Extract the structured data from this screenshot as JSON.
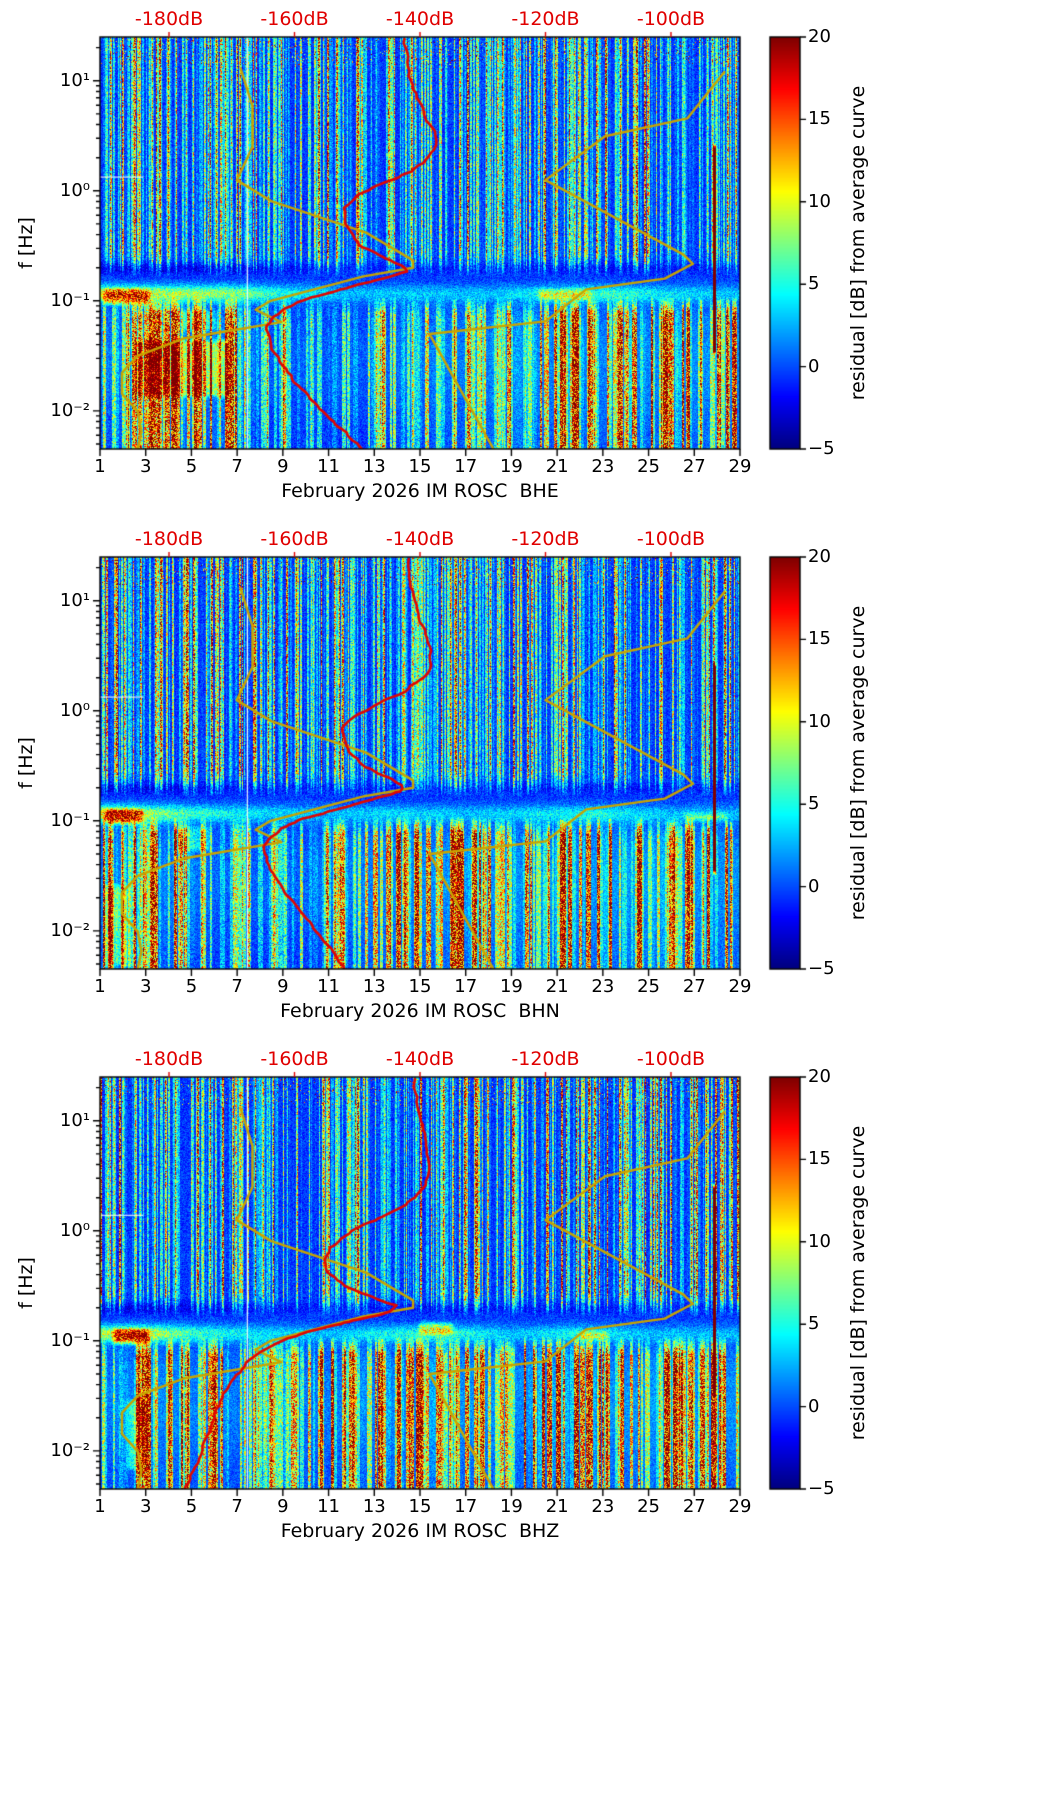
{
  "style": {
    "background": "#ffffff",
    "red_curve": "#e10600",
    "yellow_curve": "#c8a400",
    "top_axis_color": "#e00000",
    "text_color": "#000000",
    "colormap": "jet"
  },
  "axes_common": {
    "x_ticks": [
      1,
      3,
      5,
      7,
      9,
      11,
      13,
      15,
      17,
      19,
      21,
      23,
      25,
      27,
      29
    ],
    "x_tick_labels": [
      "1",
      "3",
      "5",
      "7",
      "9",
      "11",
      "13",
      "15",
      "17",
      "19",
      "21",
      "23",
      "25",
      "27",
      "29"
    ],
    "x_range_days": [
      1,
      29
    ],
    "y_label": "f [Hz]",
    "y_ticks_hz": [
      0.01,
      0.1,
      1,
      10
    ],
    "y_tick_labels": [
      "10⁻²",
      "10⁻¹",
      "10⁰",
      "10¹"
    ],
    "y_range_hz": [
      0.0045,
      25
    ],
    "top_ticks_db": [
      -180,
      -160,
      -140,
      -120,
      -100
    ],
    "top_tick_labels": [
      "-180dB",
      "-160dB",
      "-140dB",
      "-120dB",
      "-100dB"
    ],
    "db_axis_range": [
      -191,
      -89
    ],
    "colorbar": {
      "label": "residual [dB] from average curve",
      "ticks": [
        20,
        15,
        10,
        5,
        0,
        -5
      ],
      "tick_labels": [
        "20",
        "15",
        "10",
        "5",
        "0",
        "−5"
      ],
      "range_db": [
        -5,
        20
      ]
    }
  },
  "noise_models": {
    "color": "#c8a400",
    "nlnm_points_f_db": [
      [
        13,
        -168.6
      ],
      [
        5.88,
        -166.7
      ],
      [
        2.5,
        -166.7
      ],
      [
        1.25,
        -169.2
      ],
      [
        0.806,
        -163.7
      ],
      [
        0.417,
        -148.6
      ],
      [
        0.233,
        -141.1
      ],
      [
        0.2,
        -141.1
      ],
      [
        0.167,
        -149.0
      ],
      [
        0.1,
        -163.8
      ],
      [
        0.083,
        -166.2
      ],
      [
        0.064,
        -162.1
      ],
      [
        0.0457,
        -177.5
      ],
      [
        0.0316,
        -185.0
      ],
      [
        0.0222,
        -187.5
      ],
      [
        0.0143,
        -187.5
      ],
      [
        0.0099,
        -185.0
      ],
      [
        0.0065,
        -184.4
      ],
      [
        0.0045,
        -185.0
      ]
    ],
    "nhnm_points_f_db": [
      [
        12,
        -91.5
      ],
      [
        4.55,
        -97.4
      ],
      [
        3.13,
        -110.5
      ],
      [
        1.25,
        -120.0
      ],
      [
        0.263,
        -98.0
      ],
      [
        0.217,
        -96.5
      ],
      [
        0.159,
        -101.0
      ],
      [
        0.127,
        -113.5
      ],
      [
        0.065,
        -120.0
      ],
      [
        0.05,
        -138.5
      ],
      [
        0.0045,
        -128.3
      ]
    ]
  },
  "chart_data": [
    {
      "type": "heatmap",
      "channel": "BHE",
      "xlabel": "February 2026 IM ROSC  BHE",
      "x_range_days": [
        1,
        29
      ],
      "y_range_hz": [
        0.0045,
        25
      ],
      "color_range_db": [
        -5,
        20
      ],
      "db_axis_range": [
        -191,
        -89
      ],
      "red_curve_f_db": [
        [
          24,
          -142.5
        ],
        [
          15,
          -142
        ],
        [
          10,
          -141.5
        ],
        [
          7,
          -140.5
        ],
        [
          5,
          -139.5
        ],
        [
          3.5,
          -137.8
        ],
        [
          2.6,
          -137.5
        ],
        [
          2.0,
          -138.5
        ],
        [
          1.5,
          -141.5
        ],
        [
          1.15,
          -146
        ],
        [
          0.9,
          -150
        ],
        [
          0.7,
          -152
        ],
        [
          0.55,
          -152
        ],
        [
          0.42,
          -151
        ],
        [
          0.32,
          -149.5
        ],
        [
          0.26,
          -146.5
        ],
        [
          0.21,
          -142.8
        ],
        [
          0.185,
          -142.2
        ],
        [
          0.16,
          -146
        ],
        [
          0.13,
          -152
        ],
        [
          0.105,
          -158
        ],
        [
          0.085,
          -161.5
        ],
        [
          0.068,
          -163.8
        ],
        [
          0.055,
          -164.6
        ],
        [
          0.043,
          -164.2
        ],
        [
          0.033,
          -163.2
        ],
        [
          0.024,
          -161.5
        ],
        [
          0.017,
          -159.5
        ],
        [
          0.012,
          -157
        ],
        [
          0.0085,
          -154.5
        ],
        [
          0.006,
          -151.5
        ],
        [
          0.0045,
          -149
        ]
      ],
      "texture": {
        "seed": 101,
        "micro_env": [
          [
            1,
            1.0
          ],
          [
            4,
            0.9
          ],
          [
            7,
            0.8
          ],
          [
            9,
            0.5
          ],
          [
            12,
            0.3
          ],
          [
            15,
            0.35
          ],
          [
            18,
            0.3
          ],
          [
            21,
            0.5
          ],
          [
            23,
            0.6
          ],
          [
            26,
            0.4
          ],
          [
            29,
            0.3
          ]
        ],
        "low_env": [
          [
            1,
            0.5
          ],
          [
            3,
            0.9
          ],
          [
            6,
            0.8
          ],
          [
            8,
            0.4
          ],
          [
            12,
            0.35
          ],
          [
            16,
            0.7
          ],
          [
            20,
            0.8
          ],
          [
            24,
            0.8
          ],
          [
            28,
            0.9
          ]
        ],
        "high_env": [
          [
            1,
            0.75
          ],
          [
            5,
            0.85
          ],
          [
            9,
            0.7
          ],
          [
            13,
            0.75
          ],
          [
            17,
            0.7
          ],
          [
            21,
            0.75
          ],
          [
            25,
            0.8
          ],
          [
            29,
            0.85
          ]
        ],
        "blobs": [
          [
            2.3,
            6.8,
            -1.9,
            -1.32,
            6.5
          ],
          [
            1.0,
            3.3,
            -1.06,
            -0.86,
            8
          ],
          [
            4.3,
            6.2,
            -1.3,
            -1.05,
            4
          ],
          [
            20,
            22.6,
            -1.02,
            -0.86,
            5
          ]
        ],
        "hot_line_day": 27.9,
        "gap_days": [
          7.42
        ],
        "white_dash": [
          [
            1,
            2.9,
            1.35
          ]
        ]
      }
    },
    {
      "type": "heatmap",
      "channel": "BHN",
      "xlabel": "February 2026 IM ROSC  BHN",
      "x_range_days": [
        1,
        29
      ],
      "y_range_hz": [
        0.0045,
        25
      ],
      "color_range_db": [
        -5,
        20
      ],
      "db_axis_range": [
        -191,
        -89
      ],
      "red_curve_f_db": [
        [
          24,
          -141.8
        ],
        [
          15,
          -141.5
        ],
        [
          10,
          -141
        ],
        [
          7,
          -140
        ],
        [
          5,
          -139.2
        ],
        [
          3.5,
          -138.2
        ],
        [
          2.6,
          -138.2
        ],
        [
          2.0,
          -139.5
        ],
        [
          1.5,
          -142.5
        ],
        [
          1.15,
          -147
        ],
        [
          0.9,
          -150.5
        ],
        [
          0.7,
          -152.5
        ],
        [
          0.55,
          -152.3
        ],
        [
          0.42,
          -151
        ],
        [
          0.32,
          -149
        ],
        [
          0.26,
          -146
        ],
        [
          0.21,
          -142.5
        ],
        [
          0.185,
          -143
        ],
        [
          0.16,
          -147
        ],
        [
          0.13,
          -152.5
        ],
        [
          0.105,
          -158.5
        ],
        [
          0.085,
          -162
        ],
        [
          0.068,
          -164.2
        ],
        [
          0.055,
          -165
        ],
        [
          0.043,
          -164.5
        ],
        [
          0.033,
          -163.5
        ],
        [
          0.024,
          -162
        ],
        [
          0.017,
          -160
        ],
        [
          0.012,
          -157.8
        ],
        [
          0.0085,
          -155.5
        ],
        [
          0.006,
          -153.5
        ],
        [
          0.0045,
          -152
        ]
      ],
      "texture": {
        "seed": 202,
        "micro_env": [
          [
            1,
            1.0
          ],
          [
            3,
            0.9
          ],
          [
            5,
            0.6
          ],
          [
            8,
            0.4
          ],
          [
            11,
            0.3
          ],
          [
            14,
            0.4
          ],
          [
            17,
            0.3
          ],
          [
            20,
            0.4
          ],
          [
            23,
            0.5
          ],
          [
            26,
            0.3
          ],
          [
            29,
            0.3
          ]
        ],
        "low_env": [
          [
            1,
            0.7
          ],
          [
            3,
            0.8
          ],
          [
            6,
            0.5
          ],
          [
            9,
            0.4
          ],
          [
            13,
            0.8
          ],
          [
            17,
            0.9
          ],
          [
            21,
            0.9
          ],
          [
            25,
            1.0
          ],
          [
            28,
            0.9
          ]
        ],
        "high_env": [
          [
            1,
            0.8
          ],
          [
            5,
            0.85
          ],
          [
            9,
            0.7
          ],
          [
            13,
            0.75
          ],
          [
            17,
            0.75
          ],
          [
            21,
            0.8
          ],
          [
            25,
            0.8
          ],
          [
            29,
            0.85
          ]
        ],
        "blobs": [
          [
            1.0,
            3.0,
            -1.05,
            -0.86,
            10
          ],
          [
            1.0,
            2.4,
            -2.35,
            -1.55,
            5
          ],
          [
            26.4,
            28.6,
            -1.02,
            -0.9,
            4.5
          ],
          [
            4,
            6,
            -1.3,
            -1.02,
            3.5
          ]
        ],
        "hot_line_day": 27.9,
        "gap_days": [
          7.42
        ],
        "white_dash": [
          [
            1,
            2.9,
            1.35
          ]
        ]
      }
    },
    {
      "type": "heatmap",
      "channel": "BHZ",
      "xlabel": "February 2026 IM ROSC  BHZ",
      "x_range_days": [
        1,
        29
      ],
      "y_range_hz": [
        0.0045,
        25
      ],
      "color_range_db": [
        -5,
        20
      ],
      "db_axis_range": [
        -191,
        -89
      ],
      "red_curve_f_db": [
        [
          24,
          -140.8
        ],
        [
          15,
          -140.5
        ],
        [
          10,
          -139.8
        ],
        [
          7,
          -139.2
        ],
        [
          5,
          -138.8
        ],
        [
          3.5,
          -138.5
        ],
        [
          2.6,
          -139
        ],
        [
          2.0,
          -140.5
        ],
        [
          1.5,
          -144
        ],
        [
          1.15,
          -148.5
        ],
        [
          0.9,
          -152
        ],
        [
          0.7,
          -154.5
        ],
        [
          0.55,
          -155.2
        ],
        [
          0.42,
          -154.5
        ],
        [
          0.32,
          -152
        ],
        [
          0.26,
          -148.5
        ],
        [
          0.21,
          -143.8
        ],
        [
          0.185,
          -144.5
        ],
        [
          0.16,
          -149
        ],
        [
          0.13,
          -155.5
        ],
        [
          0.105,
          -161
        ],
        [
          0.085,
          -164.5
        ],
        [
          0.068,
          -167
        ],
        [
          0.055,
          -168.5
        ],
        [
          0.043,
          -170
        ],
        [
          0.033,
          -171.2
        ],
        [
          0.024,
          -172.3
        ],
        [
          0.017,
          -173.3
        ],
        [
          0.012,
          -174.3
        ],
        [
          0.0085,
          -175.3
        ],
        [
          0.006,
          -176.5
        ],
        [
          0.0045,
          -177.5
        ]
      ],
      "texture": {
        "seed": 303,
        "micro_env": [
          [
            1,
            0.9
          ],
          [
            3,
            1.0
          ],
          [
            5,
            0.6
          ],
          [
            8,
            0.4
          ],
          [
            11,
            0.3
          ],
          [
            14,
            0.5
          ],
          [
            16,
            0.6
          ],
          [
            19,
            0.3
          ],
          [
            22,
            0.5
          ],
          [
            25,
            0.3
          ],
          [
            29,
            0.3
          ]
        ],
        "low_env": [
          [
            1,
            0.6
          ],
          [
            3,
            0.9
          ],
          [
            6,
            0.7
          ],
          [
            9,
            0.6
          ],
          [
            13,
            0.8
          ],
          [
            17,
            0.9
          ],
          [
            21,
            0.8
          ],
          [
            25,
            1.0
          ],
          [
            28,
            0.9
          ]
        ],
        "high_env": [
          [
            1,
            0.8
          ],
          [
            5,
            0.85
          ],
          [
            9,
            0.75
          ],
          [
            13,
            0.75
          ],
          [
            17,
            0.75
          ],
          [
            21,
            0.8
          ],
          [
            25,
            0.8
          ],
          [
            29,
            0.85
          ]
        ],
        "blobs": [
          [
            1.4,
            3.3,
            -1.05,
            -0.86,
            10
          ],
          [
            14.8,
            16.6,
            -0.97,
            -0.8,
            6
          ],
          [
            21.8,
            23.4,
            -1.02,
            -0.88,
            5
          ],
          [
            2,
            3.2,
            -2.2,
            -1.5,
            4
          ]
        ],
        "hot_line_day": 27.9,
        "gap_days": [
          7.42
        ],
        "white_dash": [
          [
            1,
            2.9,
            1.4
          ]
        ]
      }
    }
  ]
}
